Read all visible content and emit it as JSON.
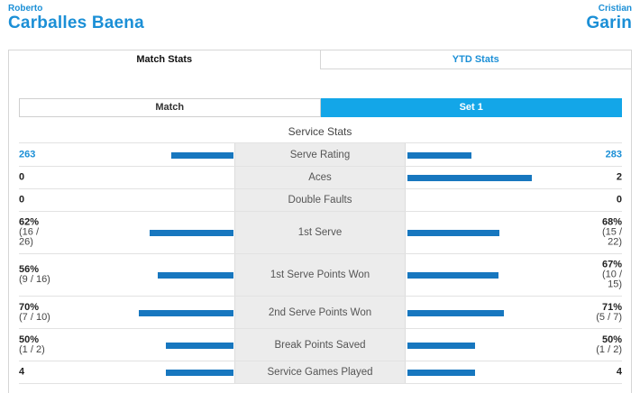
{
  "players": {
    "left": {
      "first": "Roberto",
      "last": "Carballes Baena"
    },
    "right": {
      "first": "Cristian",
      "last": "Garin"
    }
  },
  "tabs": [
    "Match Stats",
    "YTD Stats"
  ],
  "subtabs": [
    "Match",
    "Set 1"
  ],
  "section_title": "Service Stats",
  "colors": {
    "accent": "#1b8fd6",
    "bar": "#1777bf",
    "active_subtab": "#13a6e8",
    "label_bg": "#ececec"
  },
  "rows": [
    {
      "label": "Serve Rating",
      "left": "263",
      "left_sub": "",
      "right": "283",
      "right_sub": "",
      "left_fill": 0.46,
      "right_fill": 0.47,
      "h": 26
    },
    {
      "label": "Aces",
      "left": "0",
      "left_sub": "",
      "right": "2",
      "right_sub": "",
      "left_fill": 0,
      "right_fill": 0.92,
      "h": 25
    },
    {
      "label": "Double Faults",
      "left": "0",
      "left_sub": "",
      "right": "0",
      "right_sub": "",
      "left_fill": 0,
      "right_fill": 0,
      "h": 25
    },
    {
      "label": "1st Serve",
      "left": "62%",
      "left_sub": "(16 /\n26)",
      "right": "68%",
      "right_sub": "(15 /\n22)",
      "left_fill": 0.62,
      "right_fill": 0.68,
      "h": 47
    },
    {
      "label": "1st Serve Points Won",
      "left": "56%",
      "left_sub": "(9 / 16)",
      "right": "67%",
      "right_sub": "(10 /\n15)",
      "left_fill": 0.56,
      "right_fill": 0.67,
      "h": 47
    },
    {
      "label": "2nd Serve Points Won",
      "left": "70%",
      "left_sub": "(7 / 10)",
      "right": "71%",
      "right_sub": "(5 / 7)",
      "left_fill": 0.7,
      "right_fill": 0.71,
      "h": 36
    },
    {
      "label": "Break Points Saved",
      "left": "50%",
      "left_sub": "(1 / 2)",
      "right": "50%",
      "right_sub": "(1 / 2)",
      "left_fill": 0.5,
      "right_fill": 0.5,
      "h": 36
    },
    {
      "label": "Service Games Played",
      "left": "4",
      "left_sub": "",
      "right": "4",
      "right_sub": "",
      "left_fill": 0.5,
      "right_fill": 0.5,
      "h": 26
    }
  ]
}
